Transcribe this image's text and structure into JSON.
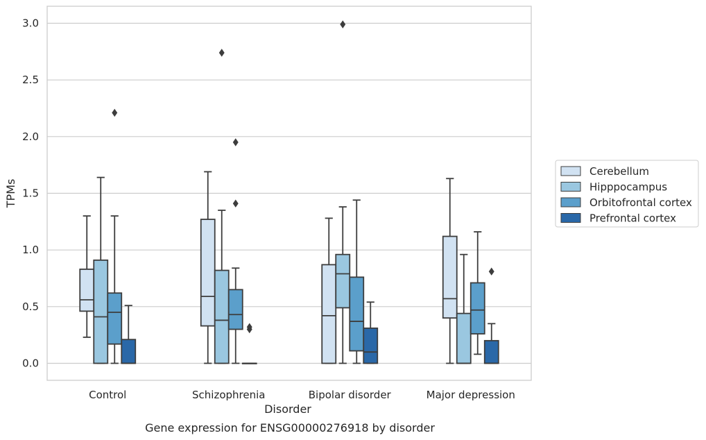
{
  "chart_data": {
    "type": "box",
    "title": "",
    "caption": "Gene expression for ENSG00000276918 by disorder",
    "xlabel": "Disorder",
    "ylabel": "TPMs",
    "ylim": [
      -0.15,
      3.15
    ],
    "yticks": [
      0.0,
      0.5,
      1.0,
      1.5,
      2.0,
      2.5,
      3.0
    ],
    "ytick_labels": [
      "0.0",
      "0.5",
      "1.0",
      "1.5",
      "2.0",
      "2.5",
      "3.0"
    ],
    "grid": "horizontal",
    "legend_position": "right",
    "categories": [
      "Control",
      "Schizophrenia",
      "Bipolar disorder",
      "Major depression"
    ],
    "series": [
      {
        "name": "Cerebellum",
        "color": "#d1e2f2",
        "boxes": [
          {
            "whisker_low": 0.23,
            "q1": 0.46,
            "median": 0.56,
            "q3": 0.83,
            "whisker_high": 1.3,
            "outliers": []
          },
          {
            "whisker_low": 0.0,
            "q1": 0.33,
            "median": 0.59,
            "q3": 1.27,
            "whisker_high": 1.69,
            "outliers": []
          },
          {
            "whisker_low": 0.0,
            "q1": 0.0,
            "median": 0.42,
            "q3": 0.87,
            "whisker_high": 1.28,
            "outliers": []
          },
          {
            "whisker_low": 0.0,
            "q1": 0.4,
            "median": 0.57,
            "q3": 1.12,
            "whisker_high": 1.63,
            "outliers": []
          }
        ]
      },
      {
        "name": "Hipppocampus",
        "color": "#9ac7e0",
        "boxes": [
          {
            "whisker_low": 0.0,
            "q1": 0.0,
            "median": 0.41,
            "q3": 0.91,
            "whisker_high": 1.64,
            "outliers": []
          },
          {
            "whisker_low": 0.0,
            "q1": 0.0,
            "median": 0.38,
            "q3": 0.82,
            "whisker_high": 1.35,
            "outliers": [
              2.74
            ]
          },
          {
            "whisker_low": 0.0,
            "q1": 0.49,
            "median": 0.79,
            "q3": 0.96,
            "whisker_high": 1.38,
            "outliers": [
              2.99
            ]
          },
          {
            "whisker_low": 0.0,
            "q1": 0.0,
            "median": 0.0,
            "q3": 0.44,
            "whisker_high": 0.96,
            "outliers": []
          }
        ]
      },
      {
        "name": "Orbitofrontal cortex",
        "color": "#5b9fcb",
        "boxes": [
          {
            "whisker_low": 0.0,
            "q1": 0.17,
            "median": 0.45,
            "q3": 0.62,
            "whisker_high": 1.3,
            "outliers": [
              2.21
            ]
          },
          {
            "whisker_low": 0.0,
            "q1": 0.3,
            "median": 0.43,
            "q3": 0.65,
            "whisker_high": 0.84,
            "outliers": [
              1.95,
              1.41
            ]
          },
          {
            "whisker_low": 0.0,
            "q1": 0.11,
            "median": 0.37,
            "q3": 0.76,
            "whisker_high": 1.44,
            "outliers": []
          },
          {
            "whisker_low": 0.08,
            "q1": 0.26,
            "median": 0.47,
            "q3": 0.71,
            "whisker_high": 1.16,
            "outliers": []
          }
        ]
      },
      {
        "name": "Prefrontal cortex",
        "color": "#2a68a8",
        "boxes": [
          {
            "whisker_low": 0.0,
            "q1": 0.0,
            "median": 0.0,
            "q3": 0.21,
            "whisker_high": 0.51,
            "outliers": []
          },
          {
            "whisker_low": 0.0,
            "q1": 0.0,
            "median": 0.0,
            "q3": 0.0,
            "whisker_high": 0.0,
            "outliers": [
              0.3,
              0.32
            ]
          },
          {
            "whisker_low": 0.0,
            "q1": 0.0,
            "median": 0.1,
            "q3": 0.31,
            "whisker_high": 0.54,
            "outliers": []
          },
          {
            "whisker_low": 0.0,
            "q1": 0.0,
            "median": 0.0,
            "q3": 0.2,
            "whisker_high": 0.35,
            "outliers": [
              0.81
            ]
          }
        ]
      }
    ]
  }
}
